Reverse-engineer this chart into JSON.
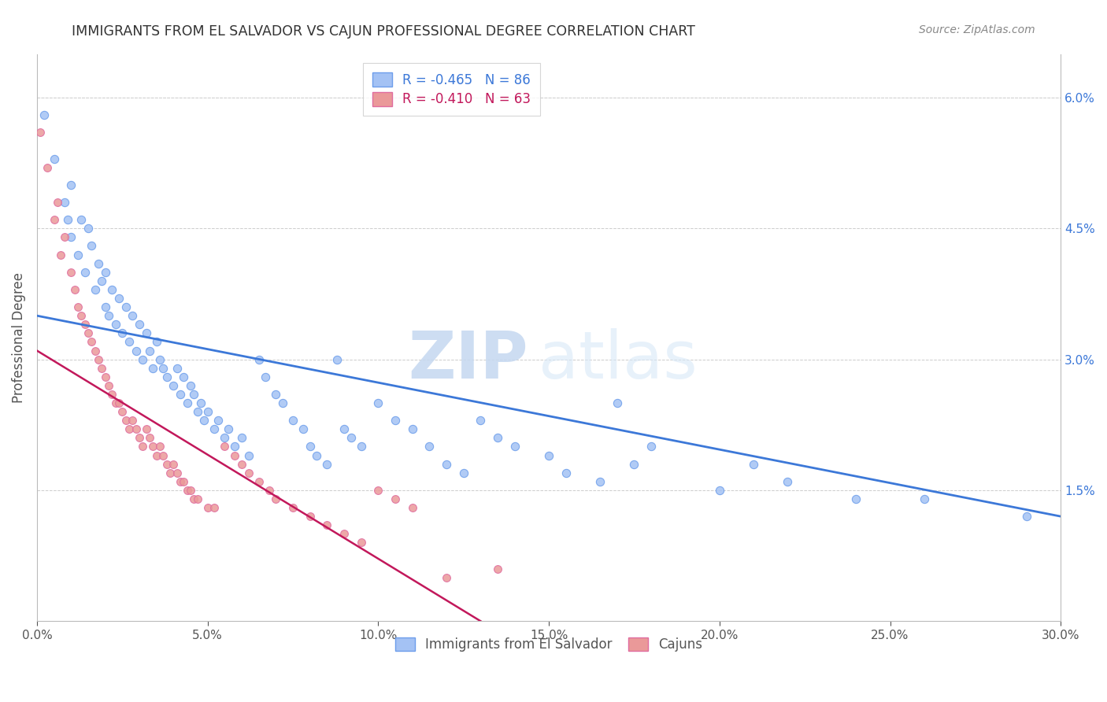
{
  "title": "IMMIGRANTS FROM EL SALVADOR VS CAJUN PROFESSIONAL DEGREE CORRELATION CHART",
  "source": "Source: ZipAtlas.com",
  "ylabel": "Professional Degree",
  "ylabel_right_ticks": [
    "6.0%",
    "4.5%",
    "3.0%",
    "1.5%"
  ],
  "ylabel_right_vals": [
    0.06,
    0.045,
    0.03,
    0.015
  ],
  "watermark_zip": "ZIP",
  "watermark_atlas": "atlas",
  "legend_blue_r": "R = -0.465",
  "legend_blue_n": "N = 86",
  "legend_pink_r": "R = -0.410",
  "legend_pink_n": "N = 63",
  "blue_color": "#a4c2f4",
  "blue_edge": "#6d9eeb",
  "pink_color": "#ea9999",
  "pink_edge": "#e06c9f",
  "trendline_blue": "#3c78d8",
  "trendline_pink": "#c2185b",
  "blue_scatter": [
    [
      0.002,
      0.058
    ],
    [
      0.005,
      0.053
    ],
    [
      0.008,
      0.048
    ],
    [
      0.009,
      0.046
    ],
    [
      0.01,
      0.05
    ],
    [
      0.01,
      0.044
    ],
    [
      0.012,
      0.042
    ],
    [
      0.013,
      0.046
    ],
    [
      0.014,
      0.04
    ],
    [
      0.015,
      0.045
    ],
    [
      0.016,
      0.043
    ],
    [
      0.017,
      0.038
    ],
    [
      0.018,
      0.041
    ],
    [
      0.019,
      0.039
    ],
    [
      0.02,
      0.04
    ],
    [
      0.02,
      0.036
    ],
    [
      0.021,
      0.035
    ],
    [
      0.022,
      0.038
    ],
    [
      0.023,
      0.034
    ],
    [
      0.024,
      0.037
    ],
    [
      0.025,
      0.033
    ],
    [
      0.026,
      0.036
    ],
    [
      0.027,
      0.032
    ],
    [
      0.028,
      0.035
    ],
    [
      0.029,
      0.031
    ],
    [
      0.03,
      0.034
    ],
    [
      0.031,
      0.03
    ],
    [
      0.032,
      0.033
    ],
    [
      0.033,
      0.031
    ],
    [
      0.034,
      0.029
    ],
    [
      0.035,
      0.032
    ],
    [
      0.036,
      0.03
    ],
    [
      0.037,
      0.029
    ],
    [
      0.038,
      0.028
    ],
    [
      0.04,
      0.027
    ],
    [
      0.041,
      0.029
    ],
    [
      0.042,
      0.026
    ],
    [
      0.043,
      0.028
    ],
    [
      0.044,
      0.025
    ],
    [
      0.045,
      0.027
    ],
    [
      0.046,
      0.026
    ],
    [
      0.047,
      0.024
    ],
    [
      0.048,
      0.025
    ],
    [
      0.049,
      0.023
    ],
    [
      0.05,
      0.024
    ],
    [
      0.052,
      0.022
    ],
    [
      0.053,
      0.023
    ],
    [
      0.055,
      0.021
    ],
    [
      0.056,
      0.022
    ],
    [
      0.058,
      0.02
    ],
    [
      0.06,
      0.021
    ],
    [
      0.062,
      0.019
    ],
    [
      0.065,
      0.03
    ],
    [
      0.067,
      0.028
    ],
    [
      0.07,
      0.026
    ],
    [
      0.072,
      0.025
    ],
    [
      0.075,
      0.023
    ],
    [
      0.078,
      0.022
    ],
    [
      0.08,
      0.02
    ],
    [
      0.082,
      0.019
    ],
    [
      0.085,
      0.018
    ],
    [
      0.088,
      0.03
    ],
    [
      0.09,
      0.022
    ],
    [
      0.092,
      0.021
    ],
    [
      0.095,
      0.02
    ],
    [
      0.1,
      0.025
    ],
    [
      0.105,
      0.023
    ],
    [
      0.11,
      0.022
    ],
    [
      0.115,
      0.02
    ],
    [
      0.12,
      0.018
    ],
    [
      0.125,
      0.017
    ],
    [
      0.13,
      0.023
    ],
    [
      0.135,
      0.021
    ],
    [
      0.14,
      0.02
    ],
    [
      0.15,
      0.019
    ],
    [
      0.155,
      0.017
    ],
    [
      0.165,
      0.016
    ],
    [
      0.17,
      0.025
    ],
    [
      0.175,
      0.018
    ],
    [
      0.18,
      0.02
    ],
    [
      0.2,
      0.015
    ],
    [
      0.21,
      0.018
    ],
    [
      0.22,
      0.016
    ],
    [
      0.24,
      0.014
    ],
    [
      0.26,
      0.014
    ],
    [
      0.29,
      0.012
    ]
  ],
  "pink_scatter": [
    [
      0.001,
      0.056
    ],
    [
      0.003,
      0.052
    ],
    [
      0.005,
      0.046
    ],
    [
      0.006,
      0.048
    ],
    [
      0.007,
      0.042
    ],
    [
      0.008,
      0.044
    ],
    [
      0.01,
      0.04
    ],
    [
      0.011,
      0.038
    ],
    [
      0.012,
      0.036
    ],
    [
      0.013,
      0.035
    ],
    [
      0.014,
      0.034
    ],
    [
      0.015,
      0.033
    ],
    [
      0.016,
      0.032
    ],
    [
      0.017,
      0.031
    ],
    [
      0.018,
      0.03
    ],
    [
      0.019,
      0.029
    ],
    [
      0.02,
      0.028
    ],
    [
      0.021,
      0.027
    ],
    [
      0.022,
      0.026
    ],
    [
      0.023,
      0.025
    ],
    [
      0.024,
      0.025
    ],
    [
      0.025,
      0.024
    ],
    [
      0.026,
      0.023
    ],
    [
      0.027,
      0.022
    ],
    [
      0.028,
      0.023
    ],
    [
      0.029,
      0.022
    ],
    [
      0.03,
      0.021
    ],
    [
      0.031,
      0.02
    ],
    [
      0.032,
      0.022
    ],
    [
      0.033,
      0.021
    ],
    [
      0.034,
      0.02
    ],
    [
      0.035,
      0.019
    ],
    [
      0.036,
      0.02
    ],
    [
      0.037,
      0.019
    ],
    [
      0.038,
      0.018
    ],
    [
      0.039,
      0.017
    ],
    [
      0.04,
      0.018
    ],
    [
      0.041,
      0.017
    ],
    [
      0.042,
      0.016
    ],
    [
      0.043,
      0.016
    ],
    [
      0.044,
      0.015
    ],
    [
      0.045,
      0.015
    ],
    [
      0.046,
      0.014
    ],
    [
      0.047,
      0.014
    ],
    [
      0.05,
      0.013
    ],
    [
      0.052,
      0.013
    ],
    [
      0.055,
      0.02
    ],
    [
      0.058,
      0.019
    ],
    [
      0.06,
      0.018
    ],
    [
      0.062,
      0.017
    ],
    [
      0.065,
      0.016
    ],
    [
      0.068,
      0.015
    ],
    [
      0.07,
      0.014
    ],
    [
      0.075,
      0.013
    ],
    [
      0.08,
      0.012
    ],
    [
      0.085,
      0.011
    ],
    [
      0.09,
      0.01
    ],
    [
      0.095,
      0.009
    ],
    [
      0.1,
      0.015
    ],
    [
      0.105,
      0.014
    ],
    [
      0.11,
      0.013
    ],
    [
      0.12,
      0.005
    ],
    [
      0.135,
      0.006
    ]
  ],
  "xlim": [
    0.0,
    0.3
  ],
  "ylim": [
    0.0,
    0.065
  ],
  "grid_color": "#cccccc",
  "background": "#ffffff",
  "title_color": "#333333",
  "source_color": "#888888"
}
